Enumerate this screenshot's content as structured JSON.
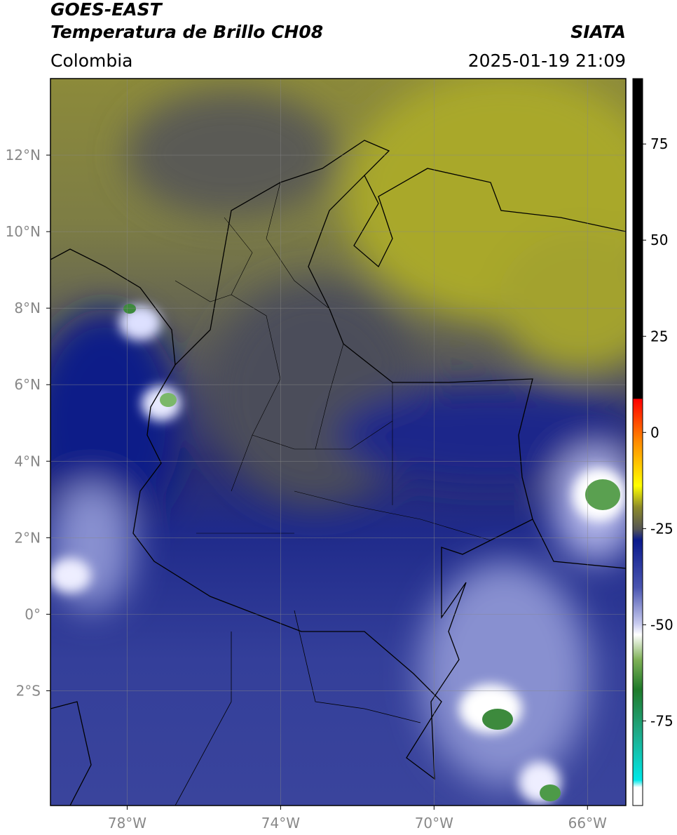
{
  "header": {
    "satellite": "GOES-EAST",
    "product": "Temperatura de Brillo CH08",
    "region": "Colombia",
    "source": "SIATA",
    "datetime": "2025-01-19 21:09"
  },
  "map": {
    "xlim": [
      -80,
      -65
    ],
    "ylim": [
      -5,
      14
    ],
    "xticks": [
      {
        "value": -78,
        "label": "78°W"
      },
      {
        "value": -74,
        "label": "74°W"
      },
      {
        "value": -70,
        "label": "70°W"
      },
      {
        "value": -66,
        "label": "66°W"
      }
    ],
    "yticks": [
      {
        "value": 12,
        "label": "12°N"
      },
      {
        "value": 10,
        "label": "10°N"
      },
      {
        "value": 8,
        "label": "8°N"
      },
      {
        "value": 6,
        "label": "6°N"
      },
      {
        "value": 4,
        "label": "4°N"
      },
      {
        "value": 2,
        "label": "2°N"
      },
      {
        "value": 0,
        "label": "0°"
      },
      {
        "value": -2,
        "label": "2°S"
      }
    ],
    "grid": true
  },
  "colorbar": {
    "lim": [
      -97,
      92
    ],
    "ticks": [
      75,
      50,
      25,
      0,
      -25,
      -50,
      -75
    ]
  }
}
